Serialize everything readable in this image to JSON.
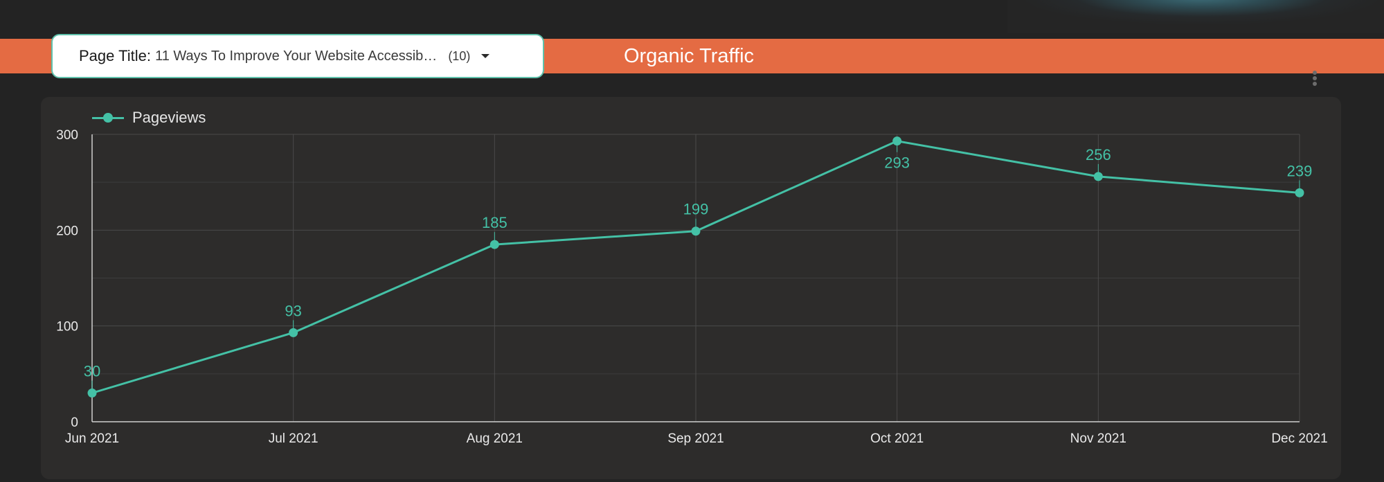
{
  "header": {
    "title": "Organic Traffic"
  },
  "filter": {
    "label": "Page Title",
    "value": "11 Ways To Improve Your Website Accessib…",
    "count": "(10)"
  },
  "menu": {
    "icon": "more-vertical-icon"
  },
  "colors": {
    "banner": "#e46b43",
    "series": "#44c1a6",
    "card": "#2d2c2b",
    "background": "#232323"
  },
  "chart_data": {
    "type": "line",
    "categories": [
      "Jun 2021",
      "Jul 2021",
      "Aug 2021",
      "Sep 2021",
      "Oct 2021",
      "Nov 2021",
      "Dec 2021"
    ],
    "series": [
      {
        "name": "Pageviews",
        "values": [
          30,
          93,
          185,
          199,
          293,
          256,
          239
        ]
      }
    ],
    "yticks": [
      0,
      100,
      200,
      300
    ],
    "ylim": [
      0,
      300
    ],
    "grid": true,
    "legend": "top-left",
    "data_labels": true
  }
}
